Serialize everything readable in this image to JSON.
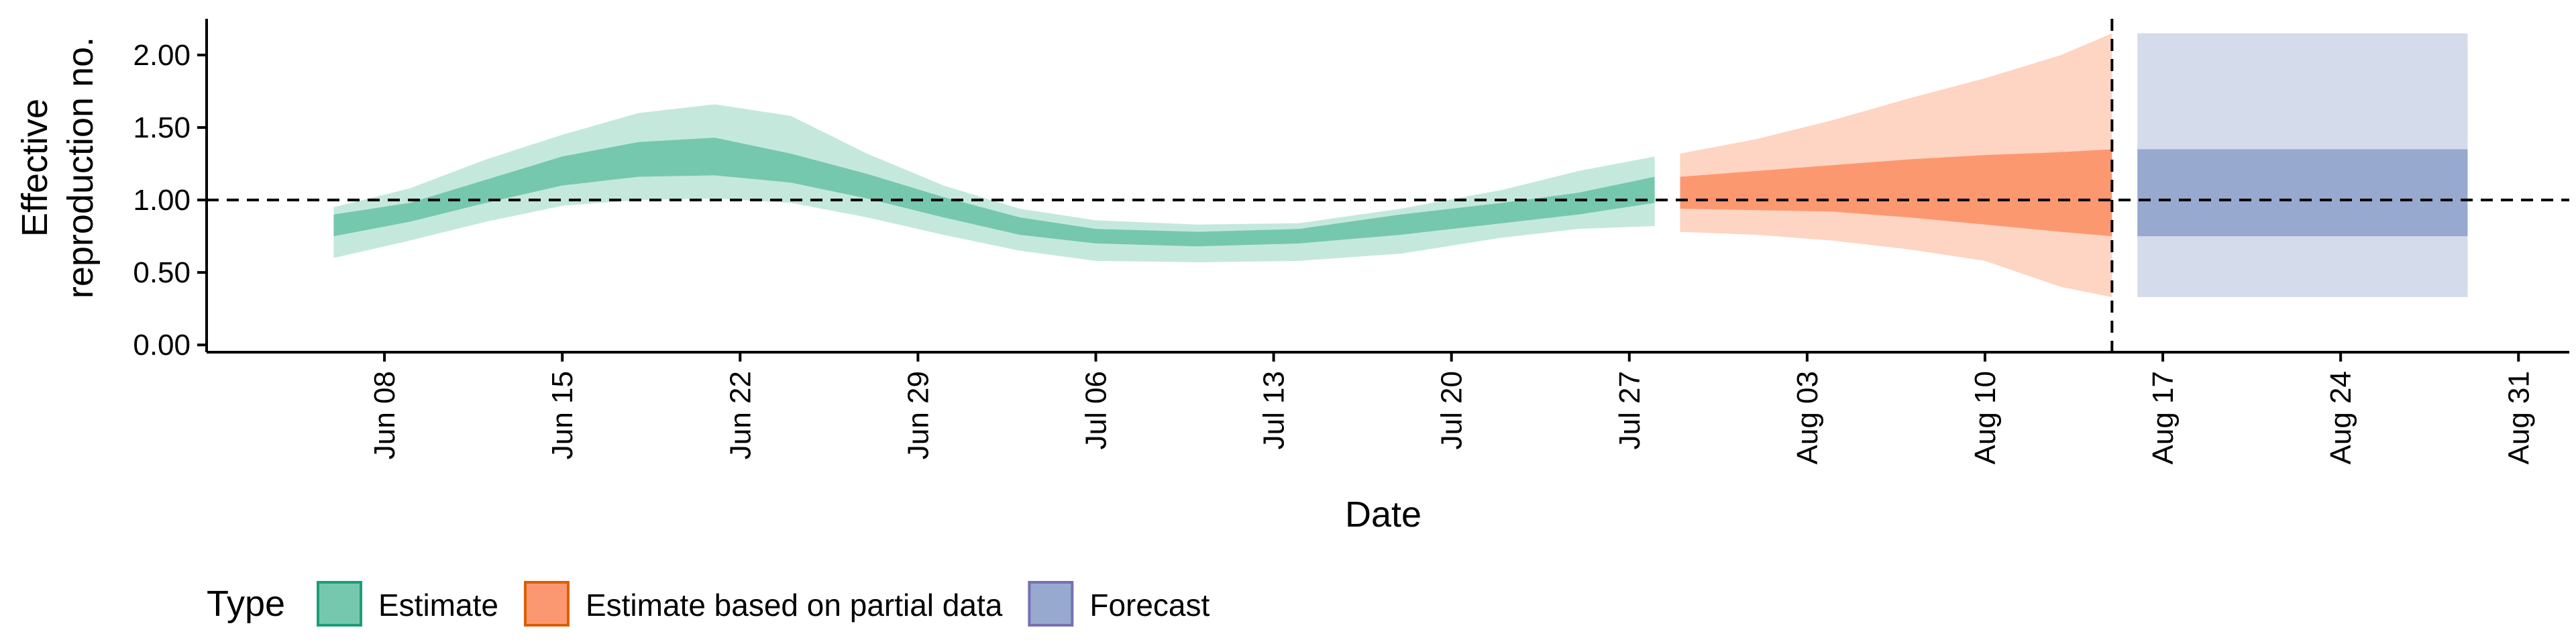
{
  "chart_data": {
    "type": "area",
    "xlabel": "Date",
    "ylabel_lines": [
      "Effective",
      "reproduction no."
    ],
    "ylim": [
      -0.05,
      2.25
    ],
    "y_ticks": [
      0.0,
      0.5,
      1.0,
      1.5,
      2.0
    ],
    "y_tick_labels": [
      "0.00",
      "0.50",
      "1.00",
      "1.50",
      "2.00"
    ],
    "x_range": [
      "2020-06-01",
      "2020-09-02"
    ],
    "x_ticks": [
      "2020-06-08",
      "2020-06-15",
      "2020-06-22",
      "2020-06-29",
      "2020-07-06",
      "2020-07-13",
      "2020-07-20",
      "2020-07-27",
      "2020-08-03",
      "2020-08-10",
      "2020-08-17",
      "2020-08-24",
      "2020-08-31"
    ],
    "x_tick_labels": [
      "Jun 08",
      "Jun 15",
      "Jun 22",
      "Jun 29",
      "Jul 06",
      "Jul 13",
      "Jul 20",
      "Jul 27",
      "Aug 03",
      "Aug 10",
      "Aug 17",
      "Aug 24",
      "Aug 31"
    ],
    "reference_line_y": 1.0,
    "forecast_start_date": "2020-08-15",
    "legend": {
      "title": "Type",
      "position": "bottom-left",
      "entries": [
        "Estimate",
        "Estimate based on partial data",
        "Forecast"
      ]
    },
    "series": [
      {
        "name": "Estimate",
        "fill": "#66c2a5",
        "stroke": "#1b9e77",
        "band_90": [
          {
            "date": "2020-06-06",
            "lo": 0.6,
            "hi": 0.95
          },
          {
            "date": "2020-06-09",
            "lo": 0.72,
            "hi": 1.08
          },
          {
            "date": "2020-06-12",
            "lo": 0.85,
            "hi": 1.28
          },
          {
            "date": "2020-06-15",
            "lo": 0.96,
            "hi": 1.45
          },
          {
            "date": "2020-06-18",
            "lo": 1.0,
            "hi": 1.6
          },
          {
            "date": "2020-06-21",
            "lo": 1.01,
            "hi": 1.66
          },
          {
            "date": "2020-06-24",
            "lo": 0.98,
            "hi": 1.58
          },
          {
            "date": "2020-06-27",
            "lo": 0.88,
            "hi": 1.32
          },
          {
            "date": "2020-06-30",
            "lo": 0.76,
            "hi": 1.1
          },
          {
            "date": "2020-07-03",
            "lo": 0.65,
            "hi": 0.94
          },
          {
            "date": "2020-07-06",
            "lo": 0.58,
            "hi": 0.86
          },
          {
            "date": "2020-07-10",
            "lo": 0.57,
            "hi": 0.83
          },
          {
            "date": "2020-07-14",
            "lo": 0.58,
            "hi": 0.84
          },
          {
            "date": "2020-07-18",
            "lo": 0.63,
            "hi": 0.94
          },
          {
            "date": "2020-07-22",
            "lo": 0.74,
            "hi": 1.07
          },
          {
            "date": "2020-07-25",
            "lo": 0.8,
            "hi": 1.2
          },
          {
            "date": "2020-07-28",
            "lo": 0.82,
            "hi": 1.3
          }
        ],
        "band_50": [
          {
            "date": "2020-06-06",
            "lo": 0.75,
            "hi": 0.9
          },
          {
            "date": "2020-06-09",
            "lo": 0.85,
            "hi": 0.98
          },
          {
            "date": "2020-06-12",
            "lo": 0.98,
            "hi": 1.14
          },
          {
            "date": "2020-06-15",
            "lo": 1.1,
            "hi": 1.3
          },
          {
            "date": "2020-06-18",
            "lo": 1.16,
            "hi": 1.4
          },
          {
            "date": "2020-06-21",
            "lo": 1.17,
            "hi": 1.43
          },
          {
            "date": "2020-06-24",
            "lo": 1.12,
            "hi": 1.32
          },
          {
            "date": "2020-06-27",
            "lo": 1.01,
            "hi": 1.18
          },
          {
            "date": "2020-06-30",
            "lo": 0.88,
            "hi": 1.02
          },
          {
            "date": "2020-07-03",
            "lo": 0.76,
            "hi": 0.88
          },
          {
            "date": "2020-07-06",
            "lo": 0.7,
            "hi": 0.8
          },
          {
            "date": "2020-07-10",
            "lo": 0.68,
            "hi": 0.78
          },
          {
            "date": "2020-07-14",
            "lo": 0.7,
            "hi": 0.8
          },
          {
            "date": "2020-07-18",
            "lo": 0.76,
            "hi": 0.9
          },
          {
            "date": "2020-07-22",
            "lo": 0.84,
            "hi": 0.98
          },
          {
            "date": "2020-07-25",
            "lo": 0.9,
            "hi": 1.05
          },
          {
            "date": "2020-07-28",
            "lo": 0.98,
            "hi": 1.16
          }
        ]
      },
      {
        "name": "Estimate based on partial data",
        "fill": "#fc8d62",
        "stroke": "#d95f02",
        "band_90": [
          {
            "date": "2020-07-29",
            "lo": 0.78,
            "hi": 1.32
          },
          {
            "date": "2020-08-01",
            "lo": 0.76,
            "hi": 1.42
          },
          {
            "date": "2020-08-04",
            "lo": 0.72,
            "hi": 1.55
          },
          {
            "date": "2020-08-07",
            "lo": 0.66,
            "hi": 1.7
          },
          {
            "date": "2020-08-10",
            "lo": 0.58,
            "hi": 1.84
          },
          {
            "date": "2020-08-13",
            "lo": 0.4,
            "hi": 2.0
          },
          {
            "date": "2020-08-15",
            "lo": 0.33,
            "hi": 2.15
          }
        ],
        "band_50": [
          {
            "date": "2020-07-29",
            "lo": 0.94,
            "hi": 1.16
          },
          {
            "date": "2020-08-01",
            "lo": 0.93,
            "hi": 1.2
          },
          {
            "date": "2020-08-04",
            "lo": 0.92,
            "hi": 1.24
          },
          {
            "date": "2020-08-07",
            "lo": 0.88,
            "hi": 1.28
          },
          {
            "date": "2020-08-10",
            "lo": 0.83,
            "hi": 1.31
          },
          {
            "date": "2020-08-13",
            "lo": 0.78,
            "hi": 1.33
          },
          {
            "date": "2020-08-15",
            "lo": 0.75,
            "hi": 1.35
          }
        ]
      },
      {
        "name": "Forecast",
        "fill": "#8da0cb",
        "stroke": "#7570b3",
        "band_90": [
          {
            "date": "2020-08-16",
            "lo": 0.33,
            "hi": 2.15
          },
          {
            "date": "2020-08-29",
            "lo": 0.33,
            "hi": 2.15
          }
        ],
        "band_50": [
          {
            "date": "2020-08-16",
            "lo": 0.75,
            "hi": 1.35
          },
          {
            "date": "2020-08-29",
            "lo": 0.75,
            "hi": 1.35
          }
        ]
      }
    ]
  }
}
